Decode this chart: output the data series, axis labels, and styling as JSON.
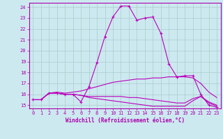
{
  "xlabel": "Windchill (Refroidissement éolien,°C)",
  "bg_color": "#cde9f0",
  "line_color": "#bb00bb",
  "grid_color": "#aacccc",
  "spine_color": "#aa00aa",
  "tick_color": "#aa00aa",
  "label_color": "#aa00aa",
  "xlim": [
    -0.5,
    23.5
  ],
  "ylim": [
    14.7,
    24.4
  ],
  "xticks": [
    0,
    1,
    2,
    3,
    4,
    5,
    6,
    7,
    8,
    9,
    10,
    11,
    12,
    13,
    14,
    15,
    16,
    17,
    18,
    19,
    20,
    21,
    22,
    23
  ],
  "yticks": [
    15,
    16,
    17,
    18,
    19,
    20,
    21,
    22,
    23,
    24
  ],
  "line1_x": [
    0,
    1,
    2,
    3,
    4,
    5,
    6,
    7,
    8,
    9,
    10,
    11,
    12,
    13,
    14,
    15,
    16,
    17,
    18,
    19,
    20,
    21,
    22,
    23
  ],
  "line1_y": [
    15.5,
    15.5,
    16.1,
    16.1,
    16.0,
    16.0,
    15.3,
    16.7,
    18.9,
    21.3,
    23.1,
    24.1,
    24.1,
    22.8,
    23.0,
    23.1,
    21.6,
    18.8,
    17.6,
    17.7,
    17.7,
    16.0,
    15.0,
    14.8
  ],
  "line2_x": [
    0,
    1,
    2,
    3,
    4,
    5,
    6,
    7,
    8,
    9,
    10,
    11,
    12,
    13,
    14,
    15,
    16,
    17,
    18,
    19,
    20,
    21,
    22,
    23
  ],
  "line2_y": [
    15.5,
    15.5,
    16.1,
    16.2,
    16.1,
    16.2,
    16.3,
    16.5,
    16.7,
    16.9,
    17.1,
    17.2,
    17.3,
    17.4,
    17.4,
    17.5,
    17.5,
    17.6,
    17.6,
    17.6,
    17.5,
    17.0,
    16.2,
    15.7
  ],
  "line3_x": [
    0,
    1,
    2,
    3,
    4,
    5,
    6,
    7,
    8,
    9,
    10,
    11,
    12,
    13,
    14,
    15,
    16,
    17,
    18,
    19,
    20,
    21,
    22,
    23
  ],
  "line3_y": [
    15.5,
    15.5,
    16.1,
    16.1,
    16.0,
    16.0,
    15.9,
    15.8,
    15.8,
    15.8,
    15.8,
    15.8,
    15.7,
    15.7,
    15.6,
    15.5,
    15.4,
    15.3,
    15.2,
    15.2,
    15.6,
    15.8,
    15.3,
    15.0
  ],
  "line4_x": [
    0,
    1,
    2,
    3,
    4,
    5,
    6,
    7,
    8,
    9,
    10,
    11,
    12,
    13,
    14,
    15,
    16,
    17,
    18,
    19,
    20,
    21,
    22,
    23
  ],
  "line4_y": [
    15.5,
    15.5,
    16.1,
    16.1,
    16.0,
    16.0,
    15.9,
    15.7,
    15.6,
    15.5,
    15.4,
    15.3,
    15.2,
    15.1,
    15.0,
    14.9,
    14.9,
    14.9,
    14.9,
    14.9,
    15.4,
    15.8,
    15.2,
    14.9
  ]
}
